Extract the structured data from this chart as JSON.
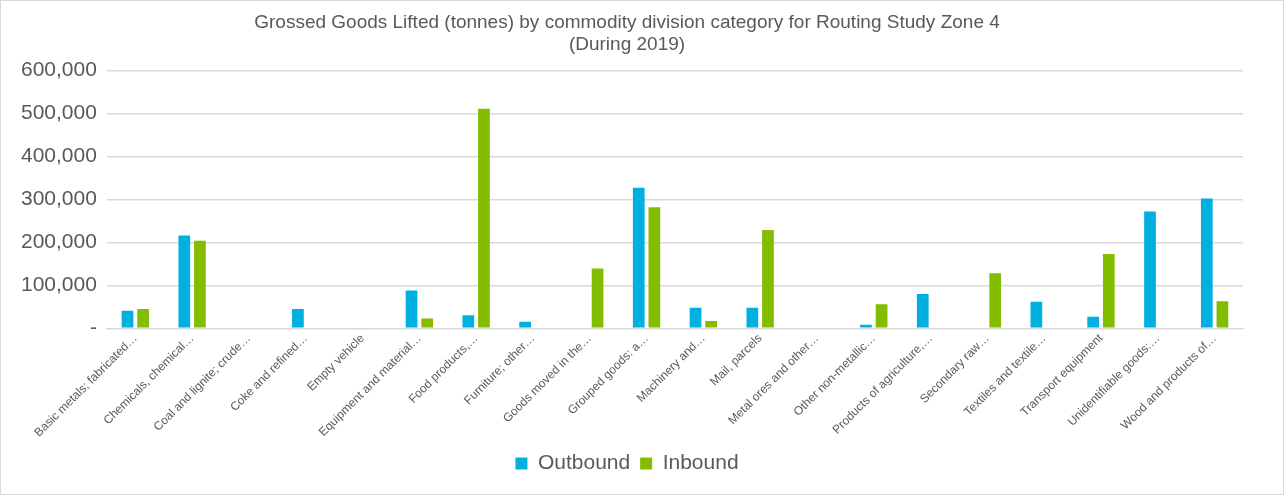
{
  "chart_data": {
    "type": "bar",
    "title": [
      "Grossed Goods Lifted (tonnes) by commodity division category for Routing Study Zone 4",
      "(During 2019)"
    ],
    "categories": [
      "Basic metals; fabricated…",
      "Chemicals, chemical…",
      "Coal and lignite; crude…",
      "Coke and refined…",
      "Empty vehicle",
      "Equipment and material…",
      "Food products,…",
      "Furniture; other…",
      "Goods moved in the…",
      "Grouped goods: a…",
      "Machinery and…",
      "Mail, parcels",
      "Metal ores and other…",
      "Other non-metallic…",
      "Products of agriculture,…",
      "Secondary raw…",
      "Textiles and textile…",
      "Transport equipment",
      "Unidentifiable goods:…",
      "Wood and products of…"
    ],
    "series": [
      {
        "name": "Outbound",
        "color": "#00b0e0",
        "values": [
          41000,
          216000,
          0,
          45000,
          0,
          88000,
          30000,
          15000,
          0,
          327000,
          48000,
          48000,
          0,
          8000,
          80000,
          0,
          62000,
          27000,
          272000,
          302000
        ]
      },
      {
        "name": "Inbound",
        "color": "#84bc00",
        "values": [
          45000,
          204000,
          0,
          0,
          0,
          23000,
          511000,
          0,
          139000,
          282000,
          17000,
          229000,
          0,
          56000,
          0,
          128000,
          0,
          173000,
          0,
          63000
        ]
      }
    ],
    "ylim": [
      0,
      600000
    ],
    "yticks": [
      {
        "value": 0,
        "label": "-"
      },
      {
        "value": 100000,
        "label": "100,000"
      },
      {
        "value": 200000,
        "label": "200,000"
      },
      {
        "value": 300000,
        "label": "300,000"
      },
      {
        "value": 400000,
        "label": "400,000"
      },
      {
        "value": 500000,
        "label": "500,000"
      },
      {
        "value": 600000,
        "label": "600,000"
      }
    ],
    "grid": "y",
    "legend": "bottom"
  }
}
